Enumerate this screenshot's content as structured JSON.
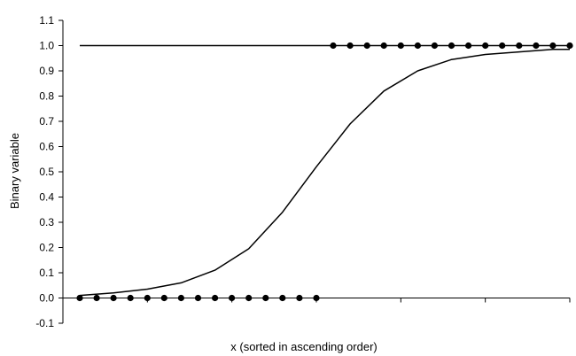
{
  "chart_data": {
    "type": "scatter",
    "title": "",
    "xlabel": "x (sorted in ascending order)",
    "ylabel": "Binary variable",
    "ylim": [
      -0.1,
      1.1
    ],
    "yticks": [
      "-0.1",
      "0.0",
      "0.1",
      "0.2",
      "0.3",
      "0.4",
      "0.5",
      "0.6",
      "0.7",
      "0.8",
      "0.9",
      "1.0",
      "1.1"
    ],
    "xlim": [
      0,
      29
    ],
    "grid": false,
    "legend": "none",
    "series": [
      {
        "type": "scatter",
        "x": [
          0,
          1,
          2,
          3,
          4,
          5,
          6,
          7,
          8,
          9,
          10,
          11,
          12,
          13,
          14,
          15,
          16,
          17,
          18,
          19,
          20,
          21,
          22,
          23,
          24,
          25,
          26,
          27,
          28,
          29
        ],
        "y": [
          0,
          0,
          0,
          0,
          0,
          0,
          0,
          0,
          0,
          0,
          0,
          0,
          0,
          0,
          0,
          1,
          1,
          1,
          1,
          1,
          1,
          1,
          1,
          1,
          1,
          1,
          1,
          1,
          1,
          1
        ]
      },
      {
        "type": "line",
        "x": [
          0,
          2,
          4,
          6,
          8,
          10,
          12,
          14,
          16,
          18,
          20,
          22,
          24,
          26,
          28,
          29
        ],
        "y": [
          0.01,
          0.02,
          0.035,
          0.06,
          0.11,
          0.195,
          0.34,
          0.52,
          0.69,
          0.82,
          0.9,
          0.945,
          0.965,
          0.975,
          0.985,
          0.985
        ]
      },
      {
        "type": "line",
        "x": [
          0,
          29
        ],
        "y": [
          1,
          1
        ]
      }
    ],
    "colors": {
      "marks": "#000000",
      "axis": "#000000"
    }
  }
}
